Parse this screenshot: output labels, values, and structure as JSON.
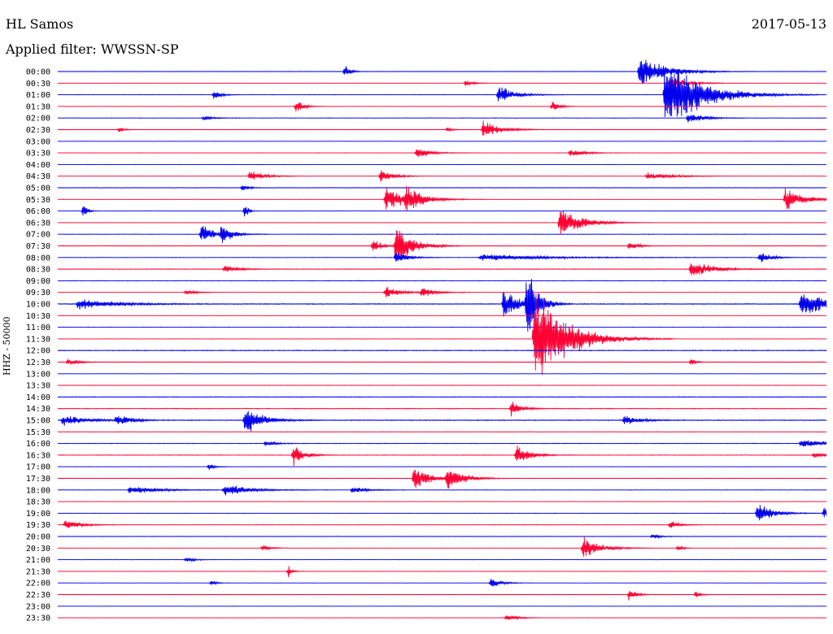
{
  "header": {
    "station": "HL Samos",
    "date": "2017-05-13",
    "filter": "Applied filter: WWSSN-SP"
  },
  "chart_data": {
    "type": "line",
    "title": "",
    "ylabel": "HHZ - 50000",
    "colors": [
      "#0000ee",
      "#ff0033"
    ],
    "y_ticks": [
      "00:00",
      "00:30",
      "01:00",
      "01:30",
      "02:00",
      "02:30",
      "03:00",
      "03:30",
      "04:00",
      "04:30",
      "05:00",
      "05:30",
      "06:00",
      "06:30",
      "07:00",
      "07:30",
      "08:00",
      "08:30",
      "09:00",
      "09:30",
      "10:00",
      "10:30",
      "11:00",
      "11:30",
      "12:00",
      "12:30",
      "13:00",
      "13:30",
      "14:00",
      "14:30",
      "15:00",
      "15:30",
      "16:00",
      "16:30",
      "17:00",
      "17:30",
      "18:00",
      "18:30",
      "19:00",
      "19:30",
      "20:00",
      "20:30",
      "21:00",
      "21:30",
      "22:00",
      "22:30",
      "23:00",
      "23:30"
    ],
    "x_unit": "minutes after trace start",
    "x_range": [
      0,
      30
    ],
    "noise_amplitude_by_trace": [
      0.15,
      0.1,
      0.15,
      0.1,
      0.2,
      0.15,
      0.15,
      0.12,
      0.1,
      0.12,
      0.2,
      0.15,
      0.1,
      0.1,
      0.2,
      0.12,
      0.2,
      0.25,
      0.2,
      0.15,
      0.35,
      0.12,
      0.15,
      0.12,
      0.3,
      0.2,
      0.15,
      0.15,
      0.3,
      0.3,
      0.35,
      0.2,
      0.2,
      0.2,
      0.15,
      0.15,
      0.2,
      0.1,
      0.15,
      0.2,
      0.15,
      0.1,
      0.1,
      0.1,
      0.1,
      0.15,
      0.12,
      0.1
    ],
    "events": [
      {
        "trace": 0,
        "t": 11.2,
        "amp": 10,
        "dur": 0.3
      },
      {
        "trace": 0,
        "t": 22.7,
        "amp": 22,
        "dur": 1.5
      },
      {
        "trace": 1,
        "t": 15.9,
        "amp": 4,
        "dur": 0.5
      },
      {
        "trace": 1,
        "t": 23.9,
        "amp": 10,
        "dur": 1.0
      },
      {
        "trace": 2,
        "t": 6.1,
        "amp": 8,
        "dur": 0.4
      },
      {
        "trace": 2,
        "t": 17.2,
        "amp": 14,
        "dur": 0.9
      },
      {
        "trace": 2,
        "t": 23.7,
        "amp": 55,
        "dur": 2.0
      },
      {
        "trace": 3,
        "t": 9.3,
        "amp": 10,
        "dur": 0.4
      },
      {
        "trace": 3,
        "t": 19.3,
        "amp": 9,
        "dur": 0.4
      },
      {
        "trace": 4,
        "t": 5.7,
        "amp": 4,
        "dur": 0.5
      },
      {
        "trace": 4,
        "t": 24.6,
        "amp": 9,
        "dur": 0.8
      },
      {
        "trace": 5,
        "t": 2.4,
        "amp": 4,
        "dur": 0.3
      },
      {
        "trace": 5,
        "t": 15.2,
        "amp": 4,
        "dur": 0.3
      },
      {
        "trace": 5,
        "t": 16.6,
        "amp": 13,
        "dur": 1.0
      },
      {
        "trace": 7,
        "t": 14.0,
        "amp": 8,
        "dur": 0.8
      },
      {
        "trace": 7,
        "t": 20.0,
        "amp": 6,
        "dur": 0.8
      },
      {
        "trace": 9,
        "t": 7.5,
        "amp": 9,
        "dur": 0.8
      },
      {
        "trace": 9,
        "t": 12.6,
        "amp": 10,
        "dur": 0.7
      },
      {
        "trace": 9,
        "t": 23.0,
        "amp": 5,
        "dur": 1.5
      },
      {
        "trace": 10,
        "t": 7.2,
        "amp": 5,
        "dur": 0.4
      },
      {
        "trace": 11,
        "t": 12.8,
        "amp": 16,
        "dur": 1.3
      },
      {
        "trace": 11,
        "t": 13.6,
        "amp": 18,
        "dur": 0.8
      },
      {
        "trace": 11,
        "t": 28.4,
        "amp": 18,
        "dur": 1.0
      },
      {
        "trace": 12,
        "t": 1.0,
        "amp": 14,
        "dur": 0.2
      },
      {
        "trace": 12,
        "t": 7.3,
        "amp": 12,
        "dur": 0.2
      },
      {
        "trace": 13,
        "t": 19.6,
        "amp": 24,
        "dur": 1.2
      },
      {
        "trace": 14,
        "t": 5.6,
        "amp": 18,
        "dur": 0.6
      },
      {
        "trace": 14,
        "t": 6.4,
        "amp": 14,
        "dur": 0.6
      },
      {
        "trace": 15,
        "t": 12.3,
        "amp": 10,
        "dur": 0.5
      },
      {
        "trace": 15,
        "t": 13.2,
        "amp": 30,
        "dur": 1.0
      },
      {
        "trace": 15,
        "t": 22.3,
        "amp": 6,
        "dur": 0.6
      },
      {
        "trace": 16,
        "t": 13.2,
        "amp": 10,
        "dur": 0.6
      },
      {
        "trace": 16,
        "t": 16.5,
        "amp": 5,
        "dur": 3.5
      },
      {
        "trace": 16,
        "t": 27.4,
        "amp": 9,
        "dur": 0.6
      },
      {
        "trace": 17,
        "t": 6.5,
        "amp": 5,
        "dur": 0.8
      },
      {
        "trace": 17,
        "t": 24.7,
        "amp": 12,
        "dur": 1.2
      },
      {
        "trace": 19,
        "t": 5.0,
        "amp": 4,
        "dur": 0.6
      },
      {
        "trace": 19,
        "t": 12.8,
        "amp": 10,
        "dur": 0.8
      },
      {
        "trace": 19,
        "t": 14.2,
        "amp": 7,
        "dur": 0.8
      },
      {
        "trace": 20,
        "t": 0.8,
        "amp": 8,
        "dur": 2.0
      },
      {
        "trace": 20,
        "t": 17.4,
        "amp": 22,
        "dur": 0.8
      },
      {
        "trace": 20,
        "t": 18.3,
        "amp": 55,
        "dur": 0.6
      },
      {
        "trace": 20,
        "t": 29.0,
        "amp": 20,
        "dur": 1.5
      },
      {
        "trace": 23,
        "t": 18.6,
        "amp": 75,
        "dur": 1.8
      },
      {
        "trace": 25,
        "t": 0.4,
        "amp": 5,
        "dur": 0.6
      },
      {
        "trace": 25,
        "t": 24.7,
        "amp": 5,
        "dur": 0.3
      },
      {
        "trace": 29,
        "t": 17.7,
        "amp": 10,
        "dur": 0.6
      },
      {
        "trace": 30,
        "t": 0.2,
        "amp": 8,
        "dur": 1.2
      },
      {
        "trace": 30,
        "t": 2.3,
        "amp": 9,
        "dur": 0.8
      },
      {
        "trace": 30,
        "t": 7.3,
        "amp": 20,
        "dur": 1.0
      },
      {
        "trace": 30,
        "t": 22.1,
        "amp": 8,
        "dur": 0.8
      },
      {
        "trace": 32,
        "t": 8.1,
        "amp": 4,
        "dur": 0.6
      },
      {
        "trace": 32,
        "t": 29.0,
        "amp": 6,
        "dur": 1.6
      },
      {
        "trace": 33,
        "t": 9.2,
        "amp": 16,
        "dur": 0.6
      },
      {
        "trace": 33,
        "t": 17.9,
        "amp": 14,
        "dur": 0.8
      },
      {
        "trace": 33,
        "t": 29.5,
        "amp": 5,
        "dur": 0.6
      },
      {
        "trace": 34,
        "t": 5.9,
        "amp": 5,
        "dur": 0.3
      },
      {
        "trace": 35,
        "t": 13.9,
        "amp": 18,
        "dur": 0.9
      },
      {
        "trace": 35,
        "t": 15.2,
        "amp": 18,
        "dur": 0.9
      },
      {
        "trace": 36,
        "t": 2.8,
        "amp": 6,
        "dur": 1.6
      },
      {
        "trace": 36,
        "t": 6.5,
        "amp": 9,
        "dur": 1.4
      },
      {
        "trace": 36,
        "t": 11.5,
        "amp": 5,
        "dur": 0.8
      },
      {
        "trace": 38,
        "t": 27.3,
        "amp": 14,
        "dur": 0.9
      },
      {
        "trace": 38,
        "t": 29.9,
        "amp": 10,
        "dur": 0.2
      },
      {
        "trace": 39,
        "t": 0.3,
        "amp": 8,
        "dur": 0.8
      },
      {
        "trace": 39,
        "t": 23.9,
        "amp": 6,
        "dur": 0.5
      },
      {
        "trace": 40,
        "t": 23.2,
        "amp": 4,
        "dur": 0.5
      },
      {
        "trace": 41,
        "t": 8.0,
        "amp": 6,
        "dur": 0.4
      },
      {
        "trace": 41,
        "t": 20.5,
        "amp": 16,
        "dur": 1.0
      },
      {
        "trace": 41,
        "t": 24.2,
        "amp": 5,
        "dur": 0.3
      },
      {
        "trace": 42,
        "t": 5.0,
        "amp": 4,
        "dur": 0.5
      },
      {
        "trace": 43,
        "t": 9.0,
        "amp": 10,
        "dur": 0.2
      },
      {
        "trace": 44,
        "t": 6.0,
        "amp": 4,
        "dur": 0.3
      },
      {
        "trace": 44,
        "t": 16.9,
        "amp": 7,
        "dur": 0.6
      },
      {
        "trace": 45,
        "t": 22.3,
        "amp": 9,
        "dur": 0.4
      },
      {
        "trace": 45,
        "t": 24.9,
        "amp": 5,
        "dur": 0.3
      },
      {
        "trace": 47,
        "t": 17.5,
        "amp": 6,
        "dur": 0.6
      }
    ]
  }
}
